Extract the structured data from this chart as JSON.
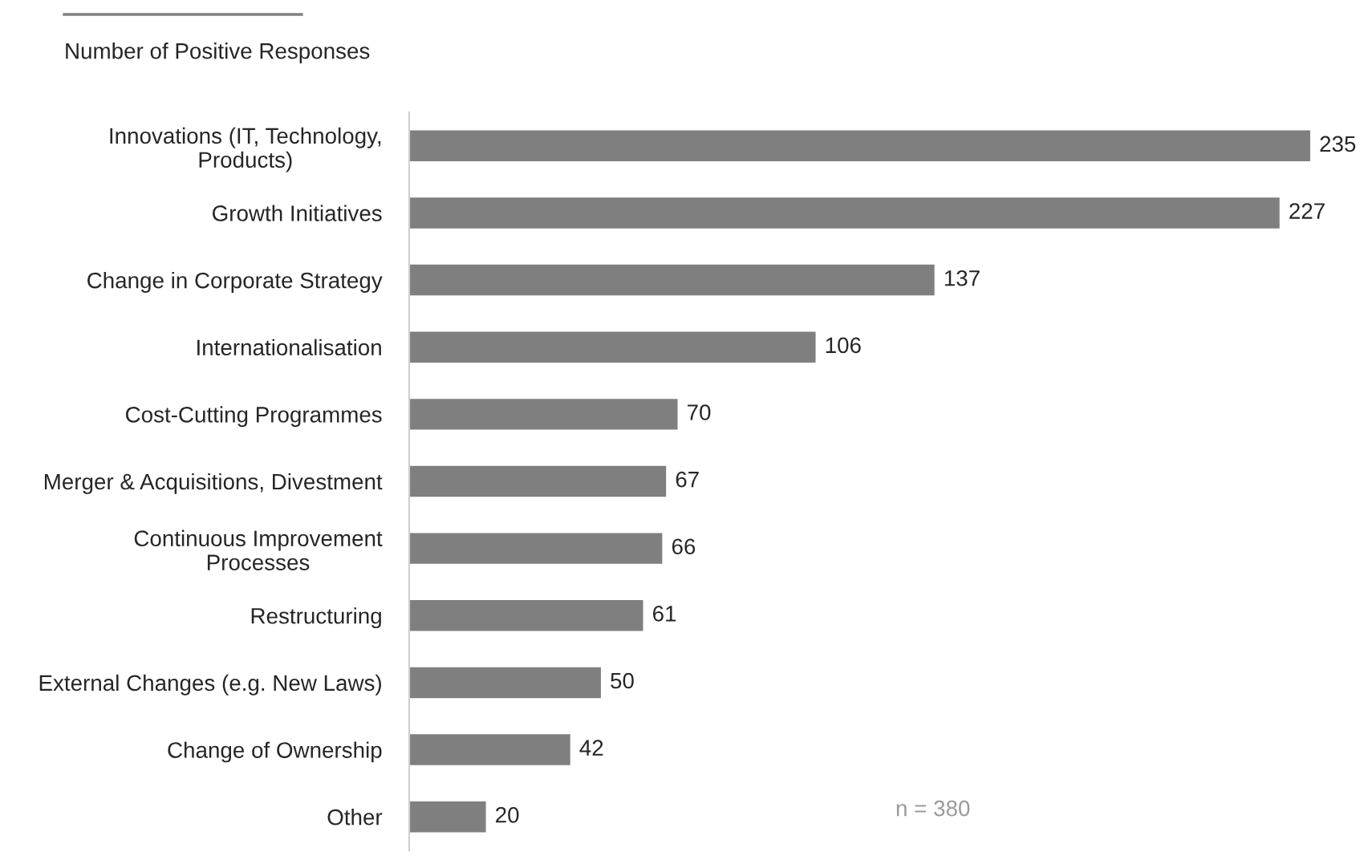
{
  "chart_data": {
    "type": "bar",
    "orientation": "horizontal",
    "title": "Number of Positive Responses",
    "categories": [
      "Innovations (IT, Technology,\nProducts)",
      "Growth Initiatives",
      "Change in Corporate Strategy",
      "Internationalisation",
      "Cost-Cutting Programmes",
      "Merger & Acquisitions, Divestment",
      "Continuous Improvement\nProcesses",
      "Restructuring",
      "External Changes (e.g. New Laws)",
      "Change of Ownership",
      "Other"
    ],
    "values": [
      235,
      227,
      137,
      106,
      70,
      67,
      66,
      61,
      50,
      42,
      20
    ],
    "color": "#7f7f7f",
    "data_labels": true,
    "grid": false,
    "legend": false,
    "annotations": [
      "n = 380"
    ]
  }
}
